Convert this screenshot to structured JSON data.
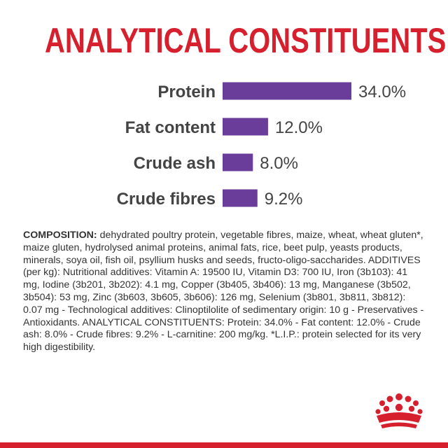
{
  "header": {
    "title": "ANALYTICAL CONSTITUENTS"
  },
  "colors": {
    "title": "#d6202e",
    "bar": "#6a3d9a",
    "label": "#444444",
    "footer": "#d6202e"
  },
  "chart_data": {
    "type": "bar",
    "orientation": "horizontal",
    "categories": [
      "Protein",
      "Fat content",
      "Crude ash",
      "Crude fibres"
    ],
    "values": [
      34.0,
      12.0,
      8.0,
      9.2
    ],
    "value_labels": [
      "34.0%",
      "12.0%",
      "8.0%",
      "9.2%"
    ],
    "title": "",
    "xlabel": "",
    "ylabel": "",
    "xlim": [
      0,
      34.0
    ],
    "grid": false
  },
  "composition": {
    "label": "COMPOSITION:",
    "text": " dehydrated poultry protein, vegetable fibres, maize, wheat, wheat gluten*, maize gluten, hydrolysed animal proteins, animal fats, rice, beet pulp, yeasts products, minerals, soya oil, fish oil, psyllium husks and seeds, fructo-oligo-saccharides. ADDITIVES (per kg): Nutritional additives: Vitamin A: 19500 IU, Vitamin D3: 700 IU, Iron (3b103): 41 mg, Iodine (3b201, 3b202): 4.1 mg, Copper (3b405, 3b406): 13 mg, Manganese (3b502, 3b504): 53 mg, Zinc (3b603, 3b605, 3b606): 126 mg, Selenium (3b801, 3b811, 3b812): 0.07 mg - Technological additives: Clinoptilolite of sedimentary origin: 10 g - Preservatives - Antioxidants. ANALYTICAL CONSTITUENTS: Protein: 34.0% - Fat content: 12.0% - Crude ash: 8.0% - Crude fibres: 9.2% - L-carnitine: 200 mg/kg. *L.I.P.: protein selected for its very high digestibility."
  },
  "logo": {
    "icon": "crown-icon"
  }
}
